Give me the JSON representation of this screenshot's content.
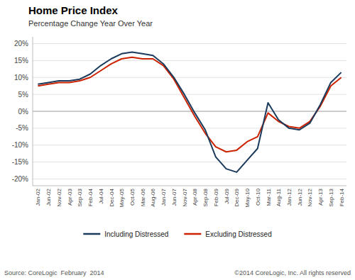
{
  "chart_data": {
    "type": "line",
    "title": "Home Price Index",
    "subtitle": "Percentage Change Year Over Year",
    "annotations": [
      "Source: CoreLogic  February  2014",
      "©2014 CoreLogic, Inc. All rights reserved"
    ],
    "categories": [
      "Jan-02",
      "Jun-02",
      "Nov-02",
      "Apr-03",
      "Sep-03",
      "Feb-04",
      "Jul-04",
      "Dec-04",
      "May-05",
      "Oct-05",
      "Mar-06",
      "Aug-06",
      "Jan-07",
      "Jun-07",
      "Nov-07",
      "Apr-08",
      "Sep-08",
      "Feb-09",
      "Jul-09",
      "Dec-09",
      "May-10",
      "Oct-10",
      "Mar-11",
      "Aug-11",
      "Jan-12",
      "Jun-12",
      "Nov-12",
      "Apr-13",
      "Sep-13",
      "Feb-14"
    ],
    "series": [
      {
        "name": "Including Distressed",
        "color": "#1b3a5c",
        "values": [
          8.0,
          8.5,
          9.0,
          9.0,
          9.5,
          11.0,
          13.5,
          15.5,
          17.0,
          17.5,
          17.0,
          16.5,
          14.0,
          10.0,
          5.0,
          -0.5,
          -5.5,
          -13.5,
          -17.0,
          -18.0,
          -14.5,
          -11.0,
          2.5,
          -2.5,
          -5.0,
          -5.5,
          -3.5,
          2.0,
          8.5,
          11.5
        ]
      },
      {
        "name": "Excluding Distressed",
        "color": "#cc2200",
        "values": [
          7.5,
          8.0,
          8.5,
          8.5,
          9.0,
          10.0,
          12.0,
          14.0,
          15.5,
          16.0,
          15.5,
          15.5,
          13.5,
          9.5,
          4.0,
          -1.5,
          -6.5,
          -10.5,
          -12.0,
          -11.5,
          -9.0,
          -7.5,
          -0.5,
          -3.0,
          -4.5,
          -5.0,
          -3.0,
          1.5,
          7.5,
          10.0
        ]
      }
    ],
    "ylim": [
      -22,
      22
    ],
    "yticks": [
      {
        "value": -20,
        "label": "-20%"
      },
      {
        "value": -15,
        "label": "-15%"
      },
      {
        "value": -10,
        "label": "-10%"
      },
      {
        "value": -5,
        "label": "-5%"
      },
      {
        "value": 0,
        "label": "0%"
      },
      {
        "value": 5,
        "label": "5%"
      },
      {
        "value": 10,
        "label": "10%"
      },
      {
        "value": 15,
        "label": "15%"
      },
      {
        "value": 20,
        "label": "20%"
      }
    ],
    "grid": true,
    "legend": "bottom"
  }
}
